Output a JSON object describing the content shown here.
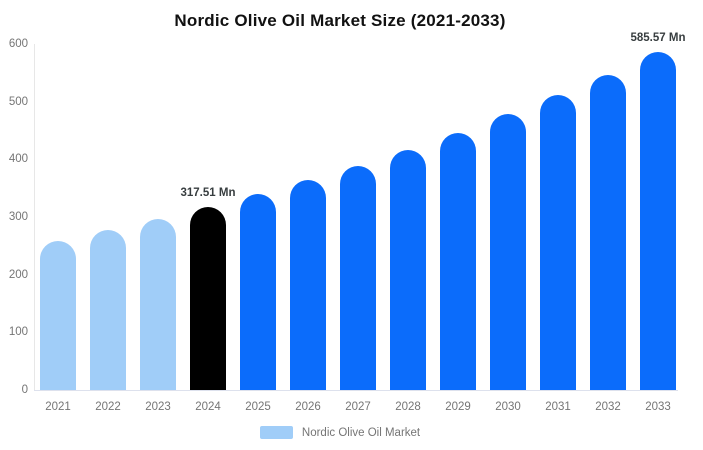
{
  "chart_data": {
    "type": "bar",
    "title": "Nordic Olive Oil Market Size (2021-2033)",
    "categories": [
      "2021",
      "2022",
      "2023",
      "2024",
      "2025",
      "2026",
      "2027",
      "2028",
      "2029",
      "2030",
      "2031",
      "2032",
      "2033"
    ],
    "values": [
      259,
      277,
      297,
      317.51,
      340,
      364,
      389,
      417,
      446,
      478,
      511,
      547,
      585.57
    ],
    "unit": "Mn",
    "bar_colors": [
      "#A0CDF8",
      "#A0CDF8",
      "#A0CDF8",
      "#000000",
      "#0B6CFB",
      "#0B6CFB",
      "#0B6CFB",
      "#0B6CFB",
      "#0B6CFB",
      "#0B6CFB",
      "#0B6CFB",
      "#0B6CFB",
      "#0B6CFB"
    ],
    "point_labels": [
      {
        "index": 3,
        "text": "317.51 Mn"
      },
      {
        "index": 12,
        "text": "585.57 Mn"
      }
    ],
    "xlabel": "",
    "ylabel": "",
    "ylim": [
      0,
      600
    ],
    "yticks": [
      0,
      100,
      200,
      300,
      400,
      500,
      600
    ],
    "grid": false,
    "legend_position": "bottom"
  },
  "legend": {
    "label": "Nordic Olive Oil Market",
    "swatch_color": "#A0CDF8"
  },
  "colors": {
    "historical_bar": "#A0CDF8",
    "current_year_bar": "#000000",
    "forecast_bar": "#0B6CFB",
    "axis_line": "#e7e7e7",
    "tick_text": "#757575",
    "title_text": "#111111",
    "point_label_text": "#373d3f"
  }
}
